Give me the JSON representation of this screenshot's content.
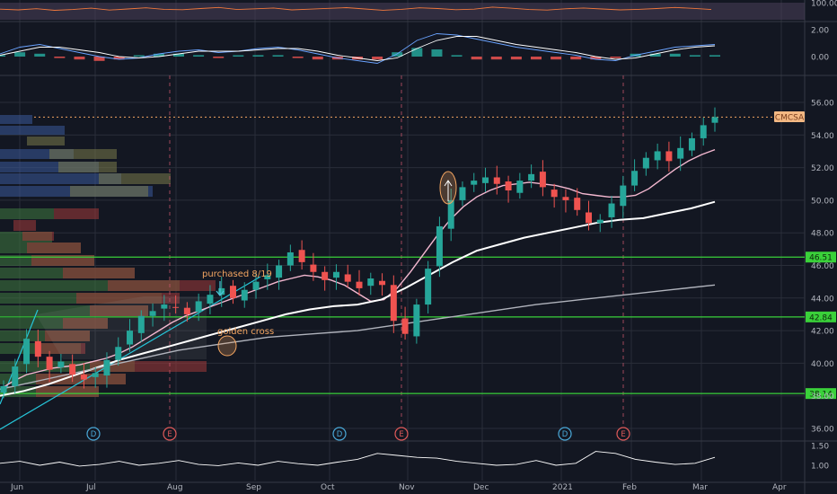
{
  "chart_data": [
    {
      "type": "line",
      "name": "rsi-panel",
      "ylim": [
        0,
        100
      ],
      "y_ticks": [
        "100.00"
      ],
      "values": [
        62,
        58,
        65,
        55,
        60,
        68,
        57,
        63,
        70,
        61,
        59,
        66,
        72,
        60,
        64,
        69,
        58,
        62,
        67,
        71,
        63,
        56,
        61,
        70,
        66,
        59,
        62,
        74,
        68,
        60,
        57,
        64,
        69,
        63,
        58,
        61,
        66,
        72,
        67,
        60
      ],
      "colors": {
        "line": "#f0783c",
        "band": "#4a3f5a"
      }
    },
    {
      "type": "line",
      "name": "macd-panel",
      "ylim": [
        -1,
        2.4
      ],
      "y_ticks": [
        "2.00",
        "0.00"
      ],
      "macd": [
        0.2,
        0.7,
        0.9,
        0.6,
        0.3,
        0.0,
        -0.2,
        -0.1,
        0.2,
        0.4,
        0.5,
        0.3,
        0.4,
        0.6,
        0.7,
        0.5,
        0.2,
        -0.1,
        -0.3,
        -0.5,
        0.2,
        1.2,
        1.7,
        1.6,
        1.3,
        1.0,
        0.7,
        0.5,
        0.3,
        0.1,
        -0.2,
        -0.3,
        0.1,
        0.4,
        0.7,
        0.8,
        0.9
      ],
      "signal": [
        0.1,
        0.4,
        0.7,
        0.7,
        0.5,
        0.3,
        0.0,
        -0.1,
        0.0,
        0.2,
        0.4,
        0.4,
        0.4,
        0.5,
        0.6,
        0.6,
        0.4,
        0.1,
        -0.1,
        -0.3,
        -0.1,
        0.6,
        1.2,
        1.5,
        1.5,
        1.2,
        0.9,
        0.7,
        0.5,
        0.3,
        0.0,
        -0.2,
        -0.1,
        0.2,
        0.5,
        0.7,
        0.8
      ],
      "colors": {
        "macd": "#6aa3ff",
        "signal": "#ffffff",
        "pos": "#26a69a",
        "neg": "#ef5350"
      }
    },
    {
      "type": "candlestick",
      "name": "price-panel",
      "x_axis": [
        "Jun",
        "Jul",
        "Aug",
        "Sep",
        "Oct",
        "Nov",
        "Dec",
        "2021",
        "Feb",
        "Mar",
        "Apr"
      ],
      "ylim": [
        35.0,
        57.2
      ],
      "y_ticks": [
        "56.00",
        "54.00",
        "52.00",
        "50.00",
        "48.00",
        "46.00",
        "44.00",
        "42.00",
        "40.00",
        "38.00",
        "36.00"
      ],
      "last_price_label": "CMCSA",
      "last_price": 55.1,
      "horizontal_levels": [
        {
          "value": 46.51,
          "label": "46.51"
        },
        {
          "value": 42.84,
          "label": "42.84"
        },
        {
          "value": 38.14,
          "label": "38.14"
        }
      ],
      "annotations": [
        {
          "text": "purchased 8/19"
        },
        {
          "text": "golden cross"
        }
      ],
      "event_markers": [
        {
          "letter": "D",
          "type": "dividend",
          "color": "#4aa8d8"
        },
        {
          "letter": "E",
          "type": "earnings",
          "color": "#e05a5a"
        },
        {
          "letter": "D",
          "type": "dividend",
          "color": "#4aa8d8"
        },
        {
          "letter": "E",
          "type": "earnings",
          "color": "#e05a5a"
        },
        {
          "letter": "D",
          "type": "dividend",
          "color": "#4aa8d8"
        },
        {
          "letter": "E",
          "type": "earnings",
          "color": "#e05a5a"
        }
      ],
      "closes": [
        38.6,
        39.8,
        41.5,
        40.4,
        39.6,
        40.1,
        39.3,
        39.0,
        39.4,
        40.2,
        41.0,
        42.0,
        42.9,
        43.2,
        43.6,
        43.4,
        43.0,
        43.8,
        44.2,
        44.6,
        44.0,
        44.5,
        45.0,
        45.4,
        46.0,
        46.8,
        46.2,
        45.6,
        45.1,
        45.6,
        45.0,
        44.6,
        45.2,
        44.8,
        42.6,
        41.8,
        43.6,
        45.8,
        48.4,
        50.0,
        50.8,
        51.2,
        51.4,
        51.0,
        50.6,
        51.2,
        51.6,
        50.8,
        50.2,
        50.0,
        49.4,
        48.6,
        48.8,
        49.8,
        50.9,
        51.8,
        52.6,
        53.0,
        52.4,
        53.2,
        53.8,
        54.6,
        55.1
      ],
      "moving_averages": [
        {
          "name": "SMA 20",
          "color": "#f4b8d0",
          "values": [
            38.4,
            38.9,
            39.3,
            39.5,
            39.7,
            39.8,
            39.9,
            40.1,
            40.3,
            40.6,
            41.0,
            41.5,
            42.0,
            42.5,
            42.9,
            43.2,
            43.5,
            43.8,
            44.1,
            44.4,
            44.7,
            45.0,
            45.2,
            45.4,
            45.3,
            45.1,
            44.8,
            44.3,
            43.8,
            43.9,
            44.6,
            45.6,
            46.7,
            47.8,
            48.8,
            49.6,
            50.2,
            50.6,
            50.9,
            51.0,
            51.1,
            51.0,
            50.9,
            50.7,
            50.4,
            50.3,
            50.2,
            50.2,
            50.3,
            50.7,
            51.3,
            51.9,
            52.4,
            52.8,
            53.1
          ]
        },
        {
          "name": "SMA 50",
          "color": "#ffffff",
          "values": [
            38.0,
            38.3,
            38.7,
            39.2,
            39.7,
            40.2,
            40.6,
            41.0,
            41.4,
            41.8,
            42.2,
            42.6,
            43.0,
            43.3,
            43.5,
            43.6,
            43.9,
            44.6,
            45.4,
            46.2,
            46.9,
            47.3,
            47.7,
            48.0,
            48.3,
            48.6,
            48.8,
            48.9,
            49.2,
            49.5,
            49.9
          ]
        },
        {
          "name": "SMA 200",
          "color": "#b0b3bc",
          "values": [
            38.4,
            39.0,
            39.6,
            40.2,
            40.8,
            41.2,
            41.6,
            41.8,
            42.0,
            42.4,
            42.8,
            43.2,
            43.6,
            43.9,
            44.2,
            44.5,
            44.8
          ]
        }
      ]
    },
    {
      "type": "line",
      "name": "relative-volume-panel",
      "ylim": [
        0.7,
        1.6
      ],
      "y_ticks": [
        "1.50",
        "1.00"
      ],
      "values": [
        1.05,
        1.1,
        1.0,
        1.08,
        0.98,
        1.02,
        1.1,
        1.0,
        1.05,
        1.12,
        1.02,
        0.99,
        1.06,
        1.0,
        1.1,
        1.04,
        1.0,
        1.08,
        1.15,
        1.3,
        1.25,
        1.2,
        1.18,
        1.1,
        1.05,
        1.0,
        1.02,
        1.12,
        1.0,
        1.05,
        1.35,
        1.3,
        1.15,
        1.08,
        1.02,
        1.05,
        1.2
      ],
      "colors": {
        "line": "#ffffff"
      }
    }
  ]
}
